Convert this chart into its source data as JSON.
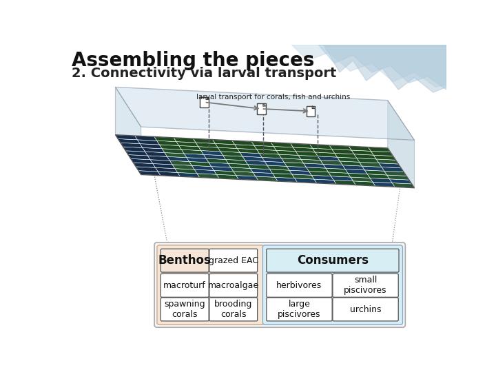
{
  "title": "Assembling the pieces",
  "subtitle": "2. Connectivity via larval transport",
  "bg_color": "#ffffff",
  "layer_label": "larval transport for corals, fish and urchins",
  "benthos_bg": "#f5e6d8",
  "consumers_bg": "#d8eef5",
  "benthos_label": "Benthos",
  "grazed_label": "grazed EAC",
  "consumers_label": "Consumers",
  "title_fontsize": 20,
  "subtitle_fontsize": 14,
  "header_fontsize": 12,
  "cell_fontsize": 9
}
